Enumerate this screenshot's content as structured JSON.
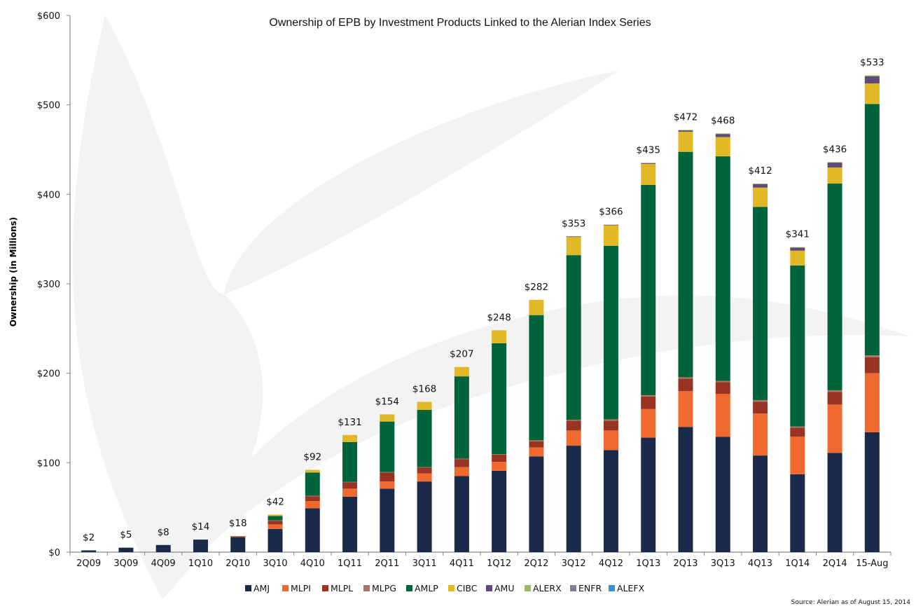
{
  "chart_data": {
    "type": "bar",
    "stacked": true,
    "title": "Ownership of EPB by Investment Products Linked to the Alerian Index Series",
    "xlabel": "",
    "ylabel": "Ownership (in Millions)",
    "ylim": [
      0,
      600
    ],
    "yticks": [
      0,
      100,
      200,
      300,
      400,
      500,
      600
    ],
    "ytick_labels": [
      "$0",
      "$100",
      "$200",
      "$300",
      "$400",
      "$500",
      "$600"
    ],
    "grid": false,
    "legend_position": "bottom",
    "categories": [
      "2Q09",
      "3Q09",
      "4Q09",
      "1Q10",
      "2Q10",
      "3Q10",
      "4Q10",
      "1Q11",
      "2Q11",
      "3Q11",
      "4Q11",
      "1Q12",
      "2Q12",
      "3Q12",
      "4Q12",
      "1Q13",
      "2Q13",
      "3Q13",
      "4Q13",
      "1Q14",
      "2Q14",
      "15-Aug"
    ],
    "totals": [
      2,
      5,
      8,
      14,
      18,
      42,
      92,
      131,
      154,
      168,
      207,
      248,
      282,
      353,
      366,
      435,
      472,
      468,
      412,
      341,
      436,
      533
    ],
    "total_labels": [
      "$2",
      "$5",
      "$8",
      "$14",
      "$18",
      "$42",
      "$92",
      "$131",
      "$154",
      "$168",
      "$207",
      "$248",
      "$282",
      "$353",
      "$366",
      "$435",
      "$472",
      "$468",
      "$412",
      "$341",
      "$436",
      "$533"
    ],
    "series": [
      {
        "name": "AMJ",
        "color": "#1b2a4a",
        "values": [
          2,
          5,
          8,
          14,
          17,
          26,
          49,
          62,
          71,
          79,
          85,
          91,
          107,
          119,
          114,
          128,
          140,
          129,
          108,
          87,
          111,
          134
        ]
      },
      {
        "name": "MLPI",
        "color": "#f06a30",
        "values": [
          0,
          0,
          0,
          0,
          1,
          5,
          8,
          9,
          8,
          9,
          10,
          10,
          10,
          17,
          22,
          32,
          40,
          48,
          47,
          42,
          54,
          66
        ]
      },
      {
        "name": "MLPL",
        "color": "#993322",
        "values": [
          0,
          0,
          0,
          0,
          0,
          4,
          5.5,
          7,
          10,
          6.5,
          9,
          8,
          7,
          11,
          11,
          14,
          14,
          13,
          13,
          10,
          14,
          18
        ]
      },
      {
        "name": "MLPG",
        "color": "#a87566",
        "values": [
          0,
          0,
          0,
          0,
          0,
          0.5,
          0.5,
          0.5,
          0.5,
          0.5,
          0.5,
          0.5,
          1,
          1,
          1.5,
          1.5,
          1.5,
          1.5,
          2,
          1.5,
          2,
          2
        ]
      },
      {
        "name": "AMLP",
        "color": "#00643a",
        "values": [
          0,
          0,
          0,
          0,
          0,
          5,
          26,
          44.5,
          56.5,
          64,
          92,
          124,
          140,
          184,
          194,
          235,
          252,
          251,
          216,
          180,
          231,
          281
        ]
      },
      {
        "name": "CIBC",
        "color": "#e1b927",
        "values": [
          0,
          0,
          0,
          0,
          0,
          1.5,
          3,
          8,
          8,
          9,
          10.5,
          14.5,
          17,
          20.5,
          23,
          23.5,
          22.5,
          21.5,
          21.5,
          16.5,
          18,
          23
        ]
      },
      {
        "name": "AMU",
        "color": "#604a7b",
        "values": [
          0,
          0,
          0,
          0,
          0,
          0,
          0,
          0,
          0,
          0,
          0,
          0,
          0,
          0.5,
          0.5,
          1,
          1.5,
          3.5,
          4,
          3.5,
          5.5,
          8
        ]
      },
      {
        "name": "ALERX",
        "color": "#9bbb59",
        "values": [
          0,
          0,
          0,
          0,
          0,
          0,
          0,
          0,
          0,
          0,
          0,
          0,
          0,
          0,
          0,
          0,
          0.5,
          0.5,
          0.5,
          0.5,
          0.5,
          1
        ]
      },
      {
        "name": "ENFR",
        "color": "#7f7f8f",
        "values": [
          0,
          0,
          0,
          0,
          0,
          0,
          0,
          0,
          0,
          0,
          0,
          0,
          0,
          0,
          0,
          0,
          0,
          0,
          0,
          0,
          0,
          0
        ]
      },
      {
        "name": "ALEFX",
        "color": "#3d8fd6",
        "values": [
          0,
          0,
          0,
          0,
          0,
          0,
          0,
          0,
          0,
          0,
          0,
          0,
          0,
          0,
          0,
          0,
          0,
          0,
          0,
          0,
          0,
          0
        ]
      }
    ],
    "source": "Source: Alerian as of August 15, 2014"
  }
}
